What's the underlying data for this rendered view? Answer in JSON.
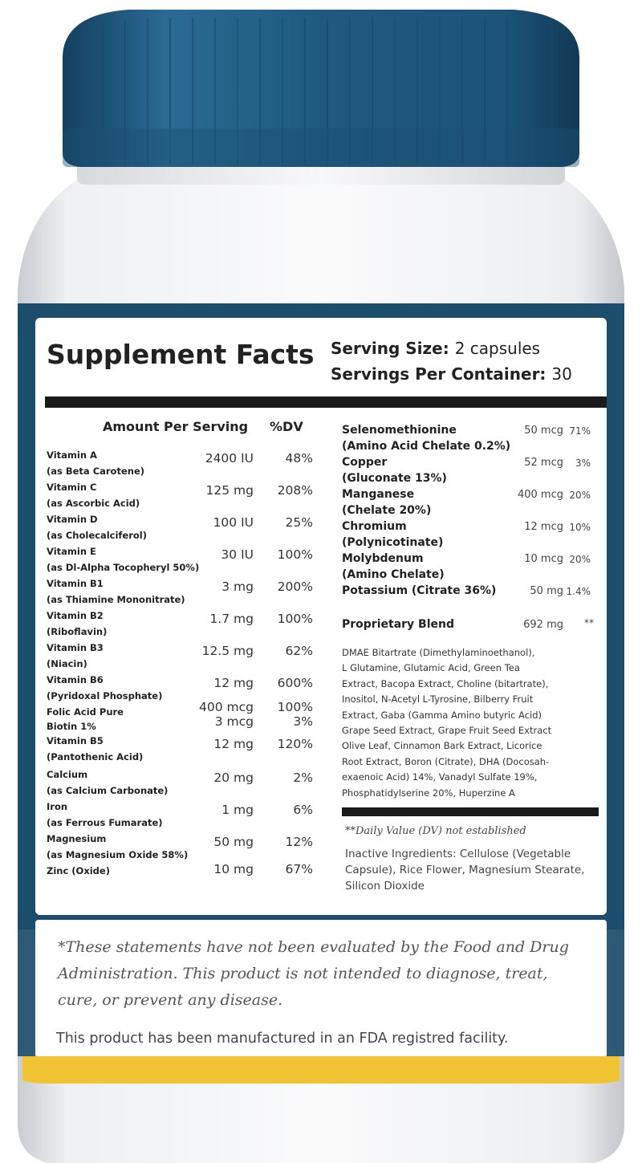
{
  "colors": {
    "cap": "#1f5a7e",
    "label_band": "#1d4d6c",
    "stripe": "#f1c232",
    "bar": "#1a1a1a"
  },
  "panel": {
    "title": "Supplement Facts",
    "serving_size_label": "Serving Size:",
    "serving_size_value": "2 capsules",
    "servings_label": "Servings Per Container:",
    "servings_value": "30",
    "amount_header": "Amount Per Serving",
    "dv_header": "%DV"
  },
  "left_items": [
    {
      "name": "Vitamin A",
      "sub": "(as Beta Carotene)",
      "amount": "2400 IU",
      "dv": "48%"
    },
    {
      "name": "Vitamin C",
      "sub": "(as Ascorbic Acid)",
      "amount": "125 mg",
      "dv": "208%"
    },
    {
      "name": "Vitamin D",
      "sub": "(as Cholecalciferol)",
      "amount": "100 IU",
      "dv": "25%"
    },
    {
      "name": "Vitamin E",
      "sub": "(as Dl-Alpha Tocopheryl 50%)",
      "amount": "30 IU",
      "dv": "100%"
    },
    {
      "name": "Vitamin B1",
      "sub": "(as Thiamine Mononitrate)",
      "amount": "3 mg",
      "dv": "200%"
    },
    {
      "name": "Vitamin B2",
      "sub": "(Riboflavin)",
      "amount": "1.7 mg",
      "dv": "100%"
    },
    {
      "name": "Vitamin B3",
      "sub": "(Niacin)",
      "amount": "12.5 mg",
      "dv": "62%"
    },
    {
      "name": "Vitamin B6",
      "sub": "(Pyridoxal Phosphate)",
      "amount": "12 mg",
      "dv": "600%"
    },
    {
      "name": "Folic Acid Pure",
      "sub": "",
      "amount": "400 mcg",
      "dv": "100%"
    },
    {
      "name": "Biotin 1%",
      "sub": "",
      "amount": "3 mcg",
      "dv": "3%"
    },
    {
      "name": "Vitamin B5",
      "sub": "(Pantothenic Acid)",
      "amount": "12 mg",
      "dv": "120%"
    },
    {
      "name": "Calcium",
      "sub": "(as Calcium Carbonate)",
      "amount": "20 mg",
      "dv": "2%"
    },
    {
      "name": "Iron",
      "sub": "(as Ferrous Fumarate)",
      "amount": "1 mg",
      "dv": "6%"
    },
    {
      "name": "Magnesium",
      "sub": "(as Magnesium Oxide 58%)",
      "amount": "50 mg",
      "dv": "12%"
    },
    {
      "name": "Zinc (Oxide)",
      "sub": "",
      "amount": "10 mg",
      "dv": "67%"
    }
  ],
  "right_items": [
    {
      "name": "Selenomethionine",
      "sub": "(Amino Acid Chelate 0.2%)",
      "amount": "50 mcg",
      "dv": "71%"
    },
    {
      "name": "Copper",
      "sub": "(Gluconate 13%)",
      "amount": "52 mcg",
      "dv": "3%"
    },
    {
      "name": "Manganese",
      "sub": "(Chelate 20%)",
      "amount": "400 mcg",
      "dv": "20%"
    },
    {
      "name": "Chromium",
      "sub": "(Polynicotinate)",
      "amount": "12 mcg",
      "dv": "10%"
    },
    {
      "name": "Molybdenum",
      "sub": "(Amino Chelate)",
      "amount": "10 mcg",
      "dv": "20%"
    },
    {
      "name": "Potassium (Citrate 36%)",
      "sub": "",
      "amount": "50 mg",
      "dv": "1.4%"
    }
  ],
  "blend": {
    "name": "Proprietary Blend",
    "amount": "692 mg",
    "dv": "**",
    "lines": [
      "DMAE Bitartrate (Dimethylaminoethanol),",
      "L Glutamine, Glutamic Acid, Green Tea",
      "Extract, Bacopa Extract, Choline (bitartrate),",
      "Inositol, N-Acetyl L-Tyrosine, Bilberry Fruit",
      "Extract, Gaba (Gamma Amino butyric Acid)",
      "Grape Seed Extract, Grape Fruit Seed Extract",
      "Olive Leaf, Cinnamon Bark Extract, Licorice",
      "Root Extract, Boron (Citrate), DHA (Docosah-",
      "exaenoic Acid) 14%, Vanadyl Sulfate 19%,",
      "Phosphatidylserine 20%, Huperzine A"
    ]
  },
  "dv_note": "**Daily Value (DV) not established",
  "inactive_lines": [
    "Inactive Ingredients: Cellulose (Vegetable",
    "Capsule), Rice Flower, Magnesium Stearate,",
    "Silicon Dioxide"
  ],
  "disclaimer": "*These statements have not been evaluated by the Food and Drug Administration. This product is not intended to diagnose, treat, cure, or prevent any disease.",
  "facility_note": "This product has been manufactured in an FDA registred facility."
}
